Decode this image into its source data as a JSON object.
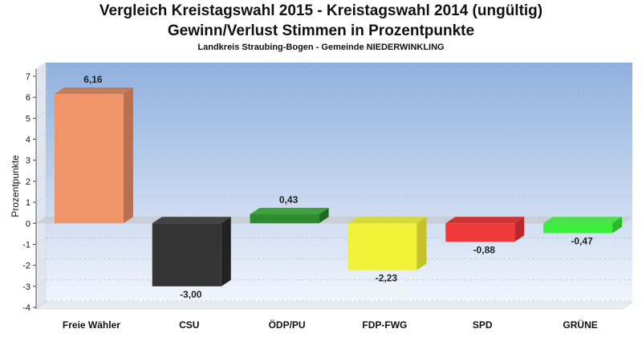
{
  "title_line1": "Vergleich Kreistagswahl 2015 - Kreistagswahl 2014 (ungültig)",
  "title_line2": "Gewinn/Verlust Stimmen in Prozentpunkte",
  "subtitle": "Landkreis Straubing-Bogen - Gemeinde NIEDERWINKLING",
  "chart_data": {
    "type": "bar",
    "ylabel": "Prozentpunkte",
    "ylim": [
      -4,
      7
    ],
    "yticks": [
      -4,
      -3,
      -2,
      -1,
      0,
      1,
      2,
      3,
      4,
      5,
      6,
      7
    ],
    "grid": true,
    "categories": [
      "Freie Wähler",
      "CSU",
      "ÖDP/PU",
      "FDP-FWG",
      "SPD",
      "GRÜNE"
    ],
    "values": [
      6.16,
      -3.0,
      0.43,
      -2.23,
      -0.88,
      -0.47
    ],
    "value_labels": [
      "6,16",
      "-3,00",
      "0,43",
      "-2,23",
      "-0,88",
      "-0,47"
    ],
    "colors": [
      "#f0956a",
      "#333333",
      "#2e8b2e",
      "#f2f23a",
      "#f03a3a",
      "#3aee3a"
    ],
    "side_colors": [
      "#b9704f",
      "#222222",
      "#226a22",
      "#c4c42a",
      "#b82a2a",
      "#2cb82c"
    ],
    "top_colors": [
      "#c47b5a",
      "#444444",
      "#3fa03f",
      "#d8d838",
      "#cf3434",
      "#4de04d"
    ]
  }
}
